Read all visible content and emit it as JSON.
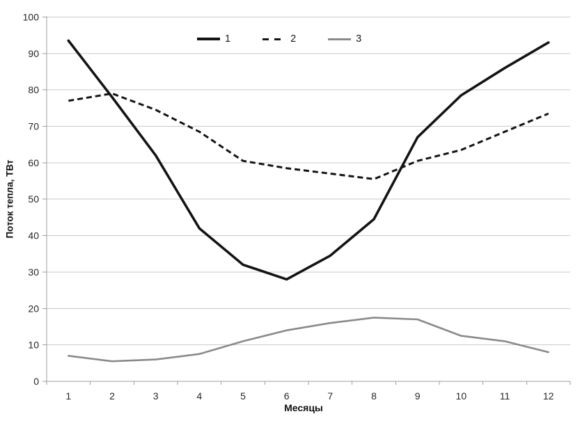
{
  "chart_data": {
    "type": "line",
    "title": "",
    "xlabel": "Месяцы",
    "ylabel": "Поток тепла, ТВт",
    "x": [
      1,
      2,
      3,
      4,
      5,
      6,
      7,
      8,
      9,
      10,
      11,
      12
    ],
    "ylim": [
      0,
      100
    ],
    "yticks": [
      0,
      10,
      20,
      30,
      40,
      50,
      60,
      70,
      80,
      90,
      100
    ],
    "grid": true,
    "legend_position": "top-center",
    "series": [
      {
        "name": "1",
        "dash": false,
        "color": "#141414",
        "values": [
          93.5,
          78,
          62,
          42,
          32,
          28,
          34.5,
          44.5,
          67,
          78.5,
          86,
          93
        ]
      },
      {
        "name": "2",
        "dash": true,
        "color": "#141414",
        "values": [
          77,
          79,
          74.5,
          68.5,
          60.5,
          58.5,
          57,
          55.5,
          60.5,
          63.5,
          68.5,
          73.5
        ]
      },
      {
        "name": "3",
        "dash": false,
        "color": "#8a8a8a",
        "values": [
          7,
          5.5,
          6,
          7.5,
          11,
          14,
          16,
          17.5,
          17,
          12.5,
          11,
          8
        ]
      }
    ],
    "colors": {
      "background": "#ffffff",
      "gridline": "#c8c8c8",
      "axis": "#9e9e9e",
      "tick_label": "#262626"
    }
  }
}
